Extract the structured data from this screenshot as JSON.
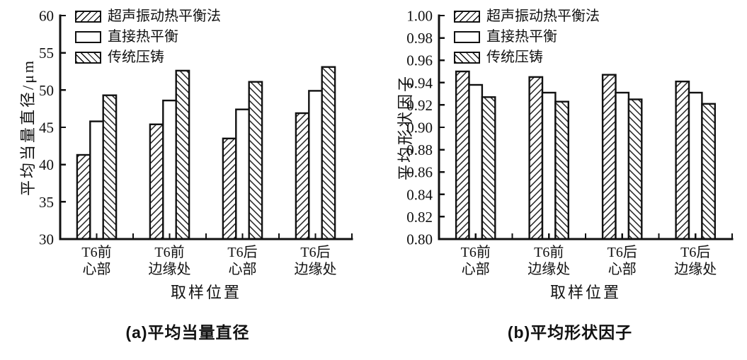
{
  "figure": {
    "background_color": "#ffffff",
    "ink_color": "#111111",
    "panel_count": 2
  },
  "legend": {
    "position": "top-left-inside-plot",
    "items": [
      {
        "label": "超声振动热平衡法",
        "hatch": "forward-slash"
      },
      {
        "label": "直接热平衡",
        "hatch": "none"
      },
      {
        "label": "传统压铸",
        "hatch": "back-slash"
      }
    ]
  },
  "chart_data": [
    {
      "id": "a",
      "type": "bar",
      "title": "(a)平均当量直径",
      "xlabel": "取样位置",
      "ylabel": "平均当量直径/μm",
      "categories": [
        [
          "T6前",
          "心部"
        ],
        [
          "T6前",
          "边缘处"
        ],
        [
          "T6后",
          "心部"
        ],
        [
          "T6后",
          "边缘处"
        ]
      ],
      "ylim": [
        30,
        60
      ],
      "ytick_labels": [
        "30",
        "35",
        "40",
        "45",
        "50",
        "55",
        "60"
      ],
      "grid": false,
      "series": [
        {
          "name": "超声振动热平衡法",
          "hatch": "forward-slash",
          "values": [
            41.3,
            45.4,
            43.5,
            46.9
          ]
        },
        {
          "name": "直接热平衡",
          "hatch": "none",
          "values": [
            45.8,
            48.6,
            47.4,
            49.9
          ]
        },
        {
          "name": "传统压铸",
          "hatch": "back-slash",
          "values": [
            49.3,
            52.6,
            51.1,
            53.1
          ]
        }
      ]
    },
    {
      "id": "b",
      "type": "bar",
      "title": "(b)平均形状因子",
      "xlabel": "取样位置",
      "ylabel": "平均形状因子",
      "categories": [
        [
          "T6前",
          "心部"
        ],
        [
          "T6前",
          "边缘处"
        ],
        [
          "T6后",
          "心部"
        ],
        [
          "T6后",
          "边缘处"
        ]
      ],
      "ylim": [
        0.8,
        1.0
      ],
      "ytick_labels": [
        "0.80",
        "0.82",
        "0.84",
        "0.86",
        "0.88",
        "0.90",
        "0.92",
        "0.94",
        "0.96",
        "0.98",
        "1.00"
      ],
      "grid": false,
      "series": [
        {
          "name": "超声振动热平衡法",
          "hatch": "forward-slash",
          "values": [
            0.95,
            0.945,
            0.947,
            0.941
          ]
        },
        {
          "name": "直接热平衡",
          "hatch": "none",
          "values": [
            0.938,
            0.931,
            0.931,
            0.931
          ]
        },
        {
          "name": "传统压铸",
          "hatch": "back-slash",
          "values": [
            0.927,
            0.923,
            0.925,
            0.921
          ]
        }
      ]
    }
  ]
}
